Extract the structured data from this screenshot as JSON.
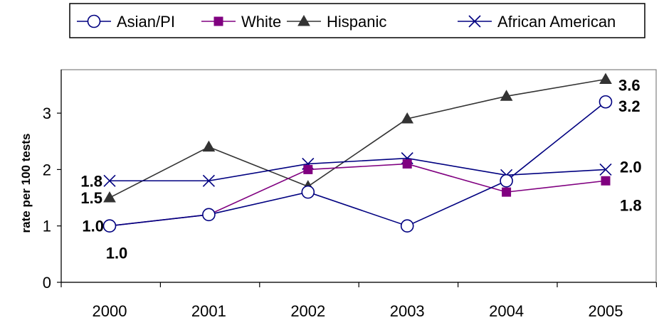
{
  "chart_data": {
    "type": "line",
    "ylabel": "rate per 100 tests",
    "xlabel": "",
    "title": "",
    "categories": [
      "2000",
      "2001",
      "2002",
      "2003",
      "2004",
      "2005"
    ],
    "yticks": [
      "0",
      "1",
      "2",
      "3"
    ],
    "ylim": [
      0,
      3.6
    ],
    "grid": false,
    "legend_position": "top",
    "series": [
      {
        "name": "Asian/PI",
        "values": [
          1.0,
          1.2,
          1.6,
          1.0,
          1.8,
          3.2
        ],
        "color": "#000080",
        "marker": "circle-open"
      },
      {
        "name": "White",
        "values": [
          1.0,
          1.2,
          2.0,
          2.1,
          1.6,
          1.8
        ],
        "color": "#800080",
        "marker": "square",
        "marker_color": "#800080"
      },
      {
        "name": "Hispanic",
        "values": [
          1.5,
          2.4,
          1.7,
          2.9,
          3.3,
          3.6
        ],
        "color": "#333333",
        "marker": "triangle",
        "marker_color": "#333333"
      },
      {
        "name": "African American",
        "values": [
          1.8,
          1.8,
          2.1,
          2.2,
          1.9,
          2.0
        ],
        "color": "#000080",
        "marker": "x"
      }
    ],
    "data_labels": [
      {
        "series": 3,
        "index": 0,
        "text": "1.8"
      },
      {
        "series": 2,
        "index": 0,
        "text": "1.5"
      },
      {
        "series": 1,
        "index": 0,
        "text": "1.0"
      },
      {
        "series": 0,
        "index": 0,
        "text": "1.0"
      },
      {
        "series": 2,
        "index": 5,
        "text": "3.6"
      },
      {
        "series": 0,
        "index": 5,
        "text": "3.2"
      },
      {
        "series": 3,
        "index": 5,
        "text": "2.0"
      },
      {
        "series": 1,
        "index": 5,
        "text": "1.8"
      }
    ]
  }
}
